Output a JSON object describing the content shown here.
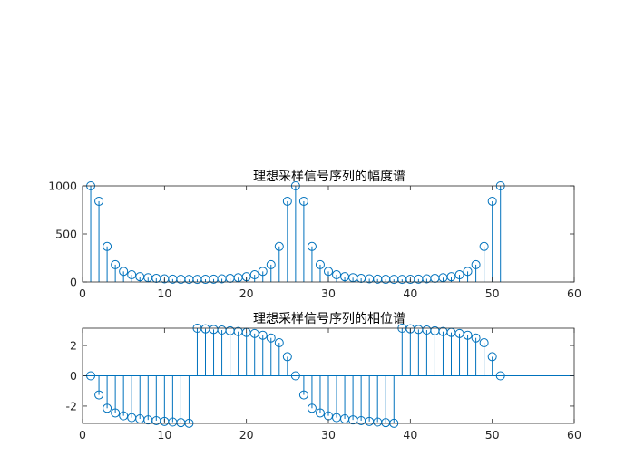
{
  "figure": {
    "background": "#ffffff",
    "stem_color": "#0072BD",
    "axis_color": "#262626"
  },
  "chart_data": [
    {
      "type": "stem",
      "title": "理想采样信号序列的幅度谱",
      "xlabel": "",
      "ylabel": "",
      "xlim": [
        0,
        60
      ],
      "ylim": [
        0,
        1000
      ],
      "xticks": [
        0,
        10,
        20,
        30,
        40,
        50,
        60
      ],
      "yticks": [
        0,
        500,
        1000
      ],
      "grid": false,
      "x": [
        1,
        2,
        3,
        4,
        5,
        6,
        7,
        8,
        9,
        10,
        11,
        12,
        13,
        14,
        15,
        16,
        17,
        18,
        19,
        20,
        21,
        22,
        23,
        24,
        25,
        26,
        27,
        28,
        29,
        30,
        31,
        32,
        33,
        34,
        35,
        36,
        37,
        38,
        39,
        40,
        41,
        42,
        43,
        44,
        45,
        46,
        47,
        48,
        49,
        50,
        51
      ],
      "values": [
        1000,
        840,
        370,
        180,
        110,
        75,
        55,
        45,
        38,
        33,
        30,
        28,
        27,
        27,
        28,
        30,
        33,
        38,
        45,
        55,
        75,
        110,
        180,
        370,
        840,
        1000,
        840,
        370,
        180,
        110,
        75,
        55,
        45,
        38,
        33,
        30,
        28,
        27,
        27,
        28,
        30,
        33,
        38,
        45,
        55,
        75,
        110,
        180,
        370,
        840,
        1000
      ]
    },
    {
      "type": "stem",
      "title": "理想采样信号序列的相位谱",
      "xlabel": "",
      "ylabel": "",
      "xlim": [
        0,
        60
      ],
      "ylim": [
        -3.14,
        3.14
      ],
      "xticks": [
        0,
        10,
        20,
        30,
        40,
        50,
        60
      ],
      "yticks": [
        -2,
        0,
        2
      ],
      "grid": false,
      "x": [
        1,
        2,
        3,
        4,
        5,
        6,
        7,
        8,
        9,
        10,
        11,
        12,
        13,
        14,
        15,
        16,
        17,
        18,
        19,
        20,
        21,
        22,
        23,
        24,
        25,
        26,
        27,
        28,
        29,
        30,
        31,
        32,
        33,
        34,
        35,
        36,
        37,
        38,
        39,
        40,
        41,
        42,
        43,
        44,
        45,
        46,
        47,
        48,
        49,
        50,
        51
      ],
      "values": [
        0,
        -1.26,
        -2.14,
        -2.45,
        -2.64,
        -2.76,
        -2.84,
        -2.91,
        -2.96,
        -3.01,
        -3.05,
        -3.09,
        -3.13,
        3.14,
        3.1,
        3.06,
        3.02,
        2.97,
        2.92,
        2.86,
        2.79,
        2.68,
        2.5,
        2.18,
        1.26,
        0,
        -1.26,
        -2.14,
        -2.45,
        -2.64,
        -2.76,
        -2.84,
        -2.91,
        -2.96,
        -3.01,
        -3.05,
        -3.09,
        -3.13,
        3.14,
        3.1,
        3.06,
        3.02,
        2.97,
        2.92,
        2.86,
        2.79,
        2.68,
        2.5,
        2.18,
        1.26,
        0
      ]
    }
  ]
}
